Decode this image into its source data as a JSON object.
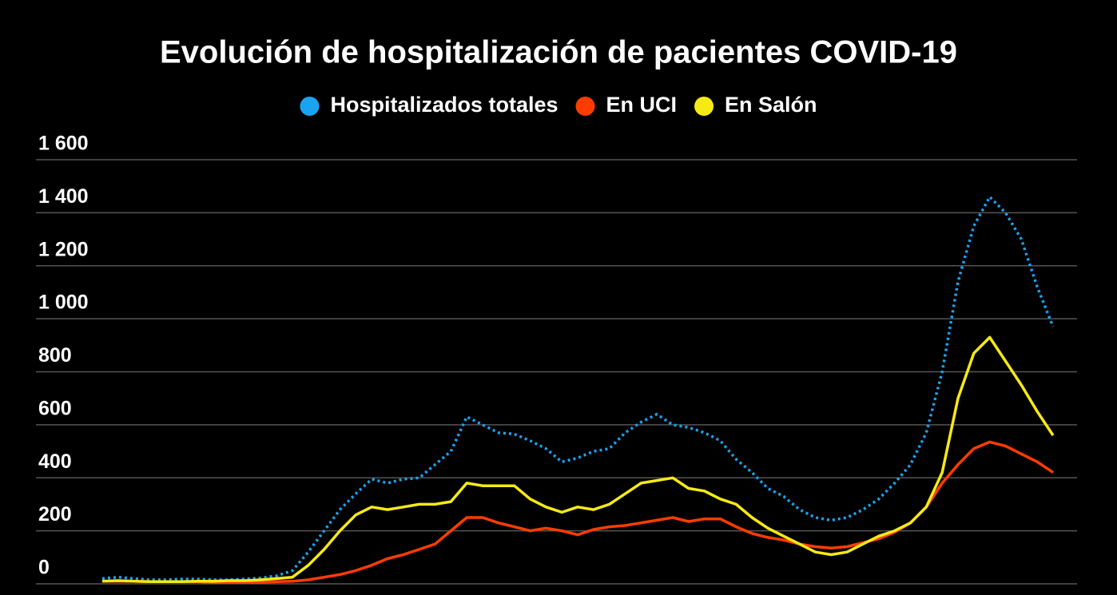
{
  "chart_data": {
    "type": "line",
    "title": "Evolución de hospitalización de pacientes COVID-19",
    "series": [
      {
        "name": "Hospitalizados totales",
        "color": "#1aa3f0",
        "dashed": true,
        "values": [
          20,
          25,
          20,
          15,
          15,
          18,
          18,
          15,
          15,
          18,
          22,
          30,
          50,
          120,
          200,
          280,
          340,
          395,
          380,
          395,
          400,
          450,
          500,
          630,
          600,
          570,
          565,
          540,
          510,
          460,
          475,
          500,
          510,
          570,
          610,
          640,
          600,
          590,
          570,
          540,
          470,
          420,
          360,
          330,
          280,
          250,
          240,
          250,
          280,
          320,
          380,
          450,
          570,
          800,
          1140,
          1350,
          1460,
          1400,
          1300,
          1120,
          970
        ]
      },
      {
        "name": "En UCI",
        "color": "#ff3c00",
        "dashed": false,
        "values": [
          10,
          10,
          10,
          8,
          8,
          8,
          8,
          5,
          5,
          5,
          5,
          8,
          10,
          15,
          25,
          35,
          50,
          70,
          95,
          110,
          130,
          150,
          200,
          250,
          250,
          230,
          215,
          200,
          210,
          200,
          185,
          205,
          215,
          220,
          230,
          240,
          250,
          235,
          245,
          245,
          215,
          190,
          175,
          165,
          150,
          140,
          135,
          140,
          155,
          170,
          195,
          230,
          290,
          380,
          450,
          510,
          535,
          520,
          490,
          460,
          420
        ]
      },
      {
        "name": "En Salón",
        "color": "#f5ea14",
        "dashed": false,
        "values": [
          10,
          12,
          10,
          8,
          8,
          8,
          10,
          10,
          12,
          12,
          15,
          20,
          25,
          70,
          130,
          200,
          260,
          290,
          280,
          290,
          300,
          300,
          310,
          380,
          370,
          370,
          370,
          320,
          290,
          270,
          290,
          280,
          300,
          340,
          380,
          390,
          400,
          360,
          350,
          320,
          300,
          250,
          210,
          180,
          150,
          120,
          110,
          120,
          150,
          180,
          200,
          230,
          290,
          420,
          700,
          870,
          930,
          840,
          750,
          650,
          560
        ]
      }
    ],
    "ylim": [
      0,
      1600
    ],
    "yticks": [
      0,
      200,
      400,
      600,
      800,
      {
        "value": 1000,
        "label": "1 000"
      },
      {
        "value": 1200,
        "label": "1 200"
      },
      {
        "value": 1400,
        "label": "1 400"
      },
      {
        "value": 1600,
        "label": "1 600"
      }
    ],
    "grid": true
  }
}
